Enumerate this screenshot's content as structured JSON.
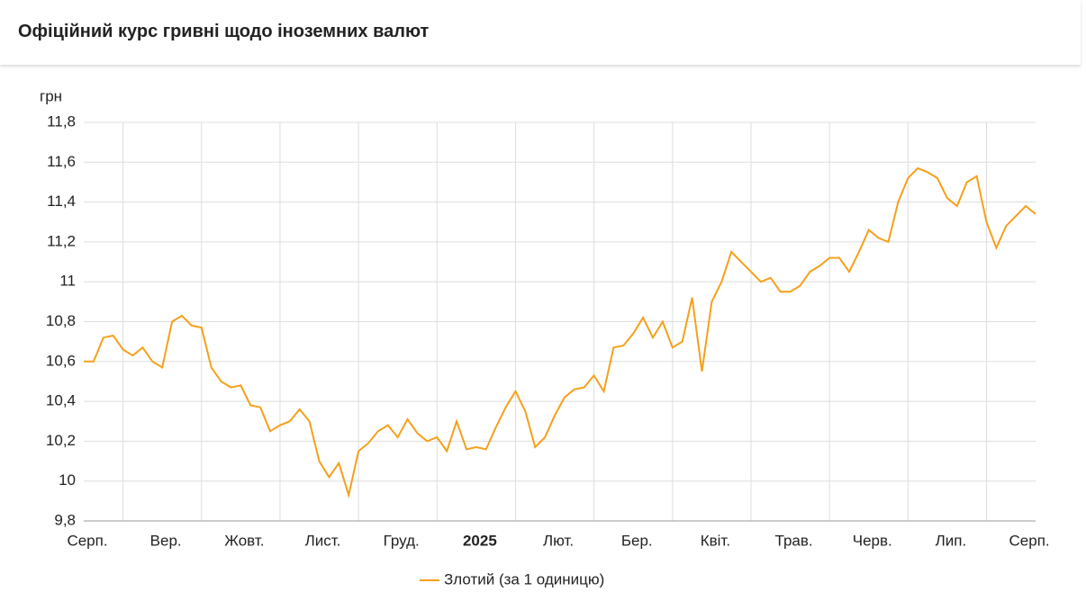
{
  "header": {
    "title": "Офіційний курс гривні щодо іноземних валют"
  },
  "chart_data": {
    "type": "line",
    "y_unit": "грн",
    "categories": [
      "Серп.",
      null,
      null,
      null,
      null,
      null,
      null,
      null,
      "Вер.",
      null,
      null,
      null,
      null,
      null,
      null,
      null,
      "Жовт.",
      null,
      null,
      null,
      null,
      null,
      null,
      null,
      "Лист.",
      null,
      null,
      null,
      null,
      null,
      null,
      null,
      "Груд.",
      null,
      null,
      null,
      null,
      null,
      null,
      null,
      "2025",
      null,
      null,
      null,
      null,
      null,
      null,
      null,
      "Лют.",
      null,
      null,
      null,
      null,
      null,
      null,
      null,
      "Бер.",
      null,
      null,
      null,
      null,
      null,
      null,
      null,
      "Квіт.",
      null,
      null,
      null,
      null,
      null,
      null,
      null,
      "Трав.",
      null,
      null,
      null,
      null,
      null,
      null,
      null,
      "Черв.",
      null,
      null,
      null,
      null,
      null,
      null,
      null,
      "Лип.",
      null,
      null,
      null,
      null,
      null,
      null,
      null,
      "Серп.",
      null
    ],
    "series": [
      {
        "name": "Злотий (за 1 одиницю)",
        "color": "#f5a01a",
        "values": [
          10.6,
          10.6,
          10.72,
          10.73,
          10.66,
          10.63,
          10.67,
          10.6,
          10.57,
          10.8,
          10.83,
          10.78,
          10.77,
          10.57,
          10.5,
          10.47,
          10.48,
          10.38,
          10.37,
          10.25,
          10.28,
          10.3,
          10.36,
          10.3,
          10.1,
          10.02,
          10.09,
          9.93,
          10.15,
          10.19,
          10.25,
          10.28,
          10.22,
          10.31,
          10.24,
          10.2,
          10.22,
          10.15,
          10.3,
          10.16,
          10.17,
          10.16,
          10.27,
          10.37,
          10.45,
          10.35,
          10.17,
          10.22,
          10.33,
          10.42,
          10.46,
          10.47,
          10.53,
          10.45,
          10.67,
          10.68,
          10.74,
          10.82,
          10.72,
          10.8,
          10.67,
          10.7,
          10.92,
          10.55,
          10.9,
          11.0,
          11.15,
          11.1,
          11.05,
          11.0,
          11.02,
          10.95,
          10.95,
          10.98,
          11.05,
          11.08,
          11.12,
          11.12,
          11.05,
          11.15,
          11.26,
          11.22,
          11.2,
          11.4,
          11.52,
          11.57,
          11.55,
          11.52,
          11.42,
          11.38,
          11.5,
          11.53,
          11.3,
          11.17,
          11.28,
          11.33,
          11.38,
          11.34
        ]
      }
    ],
    "ylim": [
      9.8,
      11.8
    ],
    "yticks": [
      {
        "value": 9.8,
        "label": "9,8"
      },
      10,
      {
        "value": 10.2,
        "label": "10,2"
      },
      {
        "value": 10.4,
        "label": "10,4"
      },
      {
        "value": 10.6,
        "label": "10,6"
      },
      {
        "value": 10.8,
        "label": "10,8"
      },
      11,
      {
        "value": 11.2,
        "label": "11,2"
      },
      {
        "value": 11.4,
        "label": "11,4"
      },
      {
        "value": 11.6,
        "label": "11,6"
      },
      {
        "value": 11.8,
        "label": "11,8"
      }
    ],
    "grid": true
  }
}
